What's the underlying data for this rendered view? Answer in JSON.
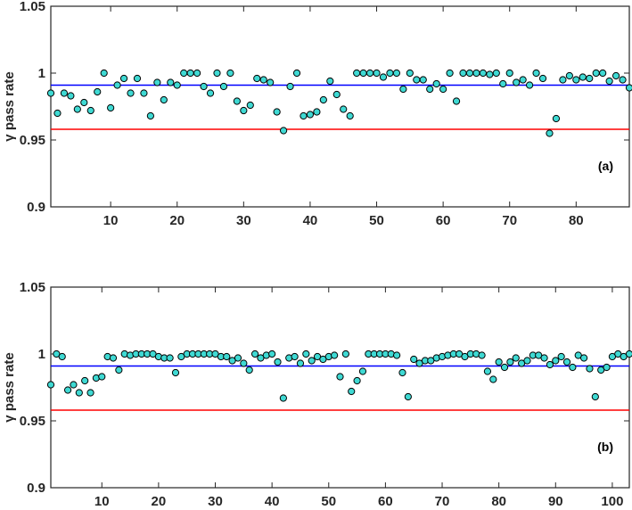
{
  "chart_data": [
    {
      "type": "scatter",
      "panel_label": "(a)",
      "ylabel": "γ pass rate",
      "xlim": [
        1,
        88
      ],
      "ylim": [
        0.9,
        1.05
      ],
      "xticks": [
        10,
        20,
        30,
        40,
        50,
        60,
        70,
        80
      ],
      "yticks": [
        0.9,
        0.95,
        1,
        1.05
      ],
      "ytick_labels": [
        "0.9",
        "0.95",
        "1",
        "1.05"
      ],
      "grid": false,
      "marker_color": "#3fd9d3",
      "reference_lines": [
        {
          "y": 0.991,
          "color": "#0000ff"
        },
        {
          "y": 0.958,
          "color": "#ff0000"
        }
      ],
      "series": [
        {
          "x": [
            1,
            2,
            3,
            4,
            5,
            6,
            7,
            8,
            9,
            10,
            11,
            12,
            13,
            14,
            15,
            16,
            17,
            18,
            19,
            20,
            21,
            22,
            23,
            24,
            25,
            26,
            27,
            28,
            29,
            30,
            31,
            32,
            33,
            34,
            35,
            36,
            37,
            38,
            39,
            40,
            41,
            42,
            43,
            44,
            45,
            46,
            47,
            48,
            49,
            50,
            51,
            52,
            53,
            54,
            55,
            56,
            57,
            58,
            59,
            60,
            61,
            62,
            63,
            64,
            65,
            66,
            67,
            68,
            69,
            70,
            71,
            72,
            73,
            74,
            75,
            76,
            77,
            78,
            79,
            80,
            81,
            82,
            83,
            84,
            85,
            86,
            87,
            88
          ],
          "y": [
            0.985,
            0.97,
            0.985,
            0.983,
            0.973,
            0.978,
            0.972,
            0.986,
            1,
            0.974,
            0.991,
            0.996,
            0.985,
            0.996,
            0.985,
            0.968,
            0.993,
            0.98,
            0.993,
            0.991,
            1,
            1,
            1,
            0.99,
            0.985,
            1,
            0.99,
            1,
            0.979,
            0.972,
            0.976,
            0.996,
            0.995,
            0.993,
            0.971,
            0.957,
            0.99,
            1,
            0.968,
            0.969,
            0.971,
            0.98,
            0.994,
            0.984,
            0.973,
            0.968,
            1,
            1,
            1,
            1,
            0.997,
            1,
            1,
            0.988,
            1,
            0.995,
            0.995,
            0.988,
            0.992,
            0.988,
            1,
            0.979,
            1,
            1,
            1,
            1,
            0.999,
            1,
            0.992,
            1,
            0.993,
            0.995,
            0.991,
            1,
            0.996,
            0.955,
            0.966,
            0.995,
            0.998,
            0.995,
            0.997,
            0.996,
            1,
            1,
            0.994,
            0.998,
            0.995,
            0.989
          ]
        }
      ]
    },
    {
      "type": "scatter",
      "panel_label": "(b)",
      "ylabel": "γ pass rate",
      "xlim": [
        1,
        103
      ],
      "ylim": [
        0.9,
        1.05
      ],
      "xticks": [
        10,
        20,
        30,
        40,
        50,
        60,
        70,
        80,
        90,
        100
      ],
      "yticks": [
        0.9,
        0.95,
        1,
        1.05
      ],
      "ytick_labels": [
        "0.9",
        "0.95",
        "1",
        "1.05"
      ],
      "grid": false,
      "marker_color": "#3fd9d3",
      "reference_lines": [
        {
          "y": 0.991,
          "color": "#0000ff"
        },
        {
          "y": 0.958,
          "color": "#ff0000"
        }
      ],
      "series": [
        {
          "x": [
            1,
            2,
            3,
            4,
            5,
            6,
            7,
            8,
            9,
            10,
            11,
            12,
            13,
            14,
            15,
            16,
            17,
            18,
            19,
            20,
            21,
            22,
            23,
            24,
            25,
            26,
            27,
            28,
            29,
            30,
            31,
            32,
            33,
            34,
            35,
            36,
            37,
            38,
            39,
            40,
            41,
            42,
            43,
            44,
            45,
            46,
            47,
            48,
            49,
            50,
            51,
            52,
            53,
            54,
            55,
            56,
            57,
            58,
            59,
            60,
            61,
            62,
            63,
            64,
            65,
            66,
            67,
            68,
            69,
            70,
            71,
            72,
            73,
            74,
            75,
            76,
            77,
            78,
            79,
            80,
            81,
            82,
            83,
            84,
            85,
            86,
            87,
            88,
            89,
            90,
            91,
            92,
            93,
            94,
            95,
            96,
            97,
            98,
            99,
            100,
            101,
            102,
            103
          ],
          "y": [
            0.977,
            1,
            0.998,
            0.973,
            0.977,
            0.971,
            0.98,
            0.971,
            0.982,
            0.983,
            0.998,
            0.997,
            0.988,
            1,
            0.999,
            1,
            1,
            1,
            1,
            0.998,
            0.997,
            0.997,
            0.986,
            0.998,
            1,
            1,
            1,
            1,
            1,
            1,
            0.998,
            0.998,
            0.995,
            0.997,
            0.993,
            0.988,
            1,
            0.997,
            0.999,
            1,
            0.994,
            0.967,
            0.997,
            0.998,
            0.993,
            1,
            0.995,
            0.998,
            0.996,
            0.998,
            0.999,
            0.983,
            1,
            0.972,
            0.98,
            0.987,
            1,
            1,
            1,
            1,
            1,
            0.999,
            0.986,
            0.968,
            0.996,
            0.993,
            0.995,
            0.995,
            0.997,
            0.998,
            0.999,
            1,
            1,
            0.998,
            1,
            1,
            0.999,
            0.987,
            0.981,
            0.994,
            0.99,
            0.994,
            0.997,
            0.993,
            0.995,
            0.999,
            0.999,
            0.997,
            0.992,
            0.995,
            0.998,
            0.994,
            0.99,
            0.999,
            0.997,
            0.989,
            0.968,
            0.988,
            0.99,
            0.998,
            1,
            0.998,
            1
          ]
        }
      ]
    }
  ]
}
